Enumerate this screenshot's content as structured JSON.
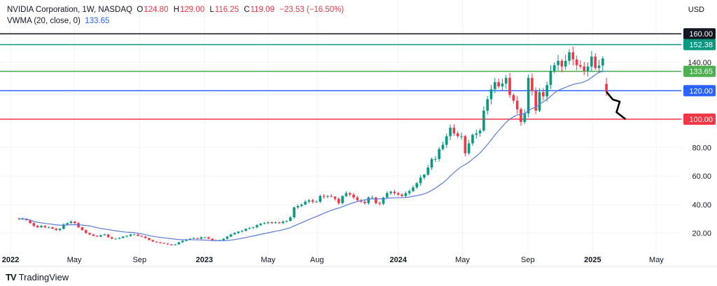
{
  "header": {
    "symbol": "NVIDIA Corporation, 1W, NASDAQ",
    "o_label": "O",
    "o": "124.80",
    "h_label": "H",
    "h": "129.00",
    "l_label": "L",
    "l": "116.25",
    "c_label": "C",
    "c": "119.09",
    "change": "−23.53 (−16.50%)",
    "indicator": "VWMA (20, close, 0)",
    "indicator_value": "133.65"
  },
  "currency": "USD",
  "brand": "TradingView",
  "colors": {
    "up": "#089981",
    "down": "#f23645",
    "vwma": "#5b7be0",
    "grid": "#f0f3fa"
  },
  "chart_data": {
    "type": "candlestick",
    "interval": "1W",
    "last_week": "2025-01-27",
    "closes": [
      30,
      30,
      29,
      27,
      25,
      24,
      25,
      24,
      24,
      23,
      22,
      23,
      26,
      27,
      28,
      27,
      24,
      22,
      20,
      19,
      18,
      17.5,
      18.5,
      19,
      17,
      16,
      16,
      16.5,
      17.5,
      18,
      19,
      19,
      18,
      17.5,
      16.5,
      15,
      14,
      13.5,
      13,
      12.5,
      12,
      11.5,
      12,
      13.5,
      14.5,
      15.5,
      16,
      16.5,
      16,
      17,
      17,
      16,
      15,
      14.6,
      15,
      16,
      17.5,
      19,
      20,
      21,
      21.5,
      23,
      23.5,
      24,
      25.5,
      26.5,
      27,
      27.5,
      27,
      27.5,
      27,
      28,
      28.5,
      31,
      38,
      39,
      40,
      42,
      43,
      42,
      42,
      46,
      45.5,
      46,
      45.5,
      44,
      41,
      46,
      48,
      47,
      45,
      43,
      42,
      41,
      45,
      45,
      41,
      40.5,
      45,
      48,
      49,
      48,
      47,
      46,
      48,
      49.5,
      52,
      55,
      59,
      61,
      66,
      72,
      72,
      79,
      82,
      88,
      94,
      90,
      88,
      88,
      76,
      83,
      89,
      90,
      92,
      106,
      114,
      121,
      126,
      123,
      125,
      129,
      117,
      113,
      107,
      98,
      104,
      129,
      120,
      106,
      119,
      116,
      124,
      134,
      138,
      141,
      137,
      141,
      147,
      142,
      138,
      137,
      134,
      137,
      144,
      136,
      137.7,
      142.62,
      119.09
    ],
    "last_candle": {
      "open": 124.8,
      "high": 129.0,
      "low": 116.25,
      "close": 119.09
    },
    "vwma_period": 20,
    "y_ticks": [
      "140.00",
      "80.00",
      "60.00",
      "40.00",
      "20.00"
    ],
    "y_tick_values": [
      140,
      80,
      60,
      40,
      20
    ],
    "ylim": [
      0,
      180
    ],
    "x_ticks": [
      {
        "date": "2022-01-01",
        "label": "2022",
        "bold": true
      },
      {
        "date": "2022-05-01",
        "label": "May"
      },
      {
        "date": "2022-09-01",
        "label": "Sep"
      },
      {
        "date": "2023-01-01",
        "label": "2023",
        "bold": true
      },
      {
        "date": "2023-05-01",
        "label": "May"
      },
      {
        "date": "2023-08-01",
        "label": "Aug"
      },
      {
        "date": "2024-01-01",
        "label": "2024",
        "bold": true
      },
      {
        "date": "2024-05-01",
        "label": "May"
      },
      {
        "date": "2024-09-01",
        "label": "Sep"
      },
      {
        "date": "2025-01-01",
        "label": "2025",
        "bold": true
      },
      {
        "date": "2025-05-01",
        "label": "May"
      }
    ],
    "levels": [
      {
        "value": 160,
        "label": "160.00",
        "color": "#131722"
      },
      {
        "value": 152.38,
        "label": "152.38",
        "color": "#089981"
      },
      {
        "value": 133.65,
        "label": "133.65",
        "color": "#4caf50"
      },
      {
        "value": 120,
        "label": "120.00",
        "color": "#2962ff"
      },
      {
        "value": 100,
        "label": "100.00",
        "color": "#f23645"
      }
    ],
    "projection": [
      {
        "date": "2025-01-27",
        "price": 119.2
      },
      {
        "date": "2025-02-08",
        "price": 113.8
      },
      {
        "date": "2025-02-21",
        "price": 112.3
      },
      {
        "date": "2025-02-15",
        "price": 104.9
      },
      {
        "date": "2025-03-04",
        "price": 100
      }
    ]
  }
}
